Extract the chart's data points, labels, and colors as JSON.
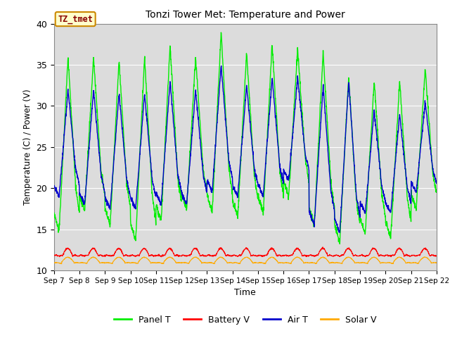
{
  "title": "Tonzi Tower Met: Temperature and Power",
  "xlabel": "Time",
  "ylabel": "Temperature (C) / Power (V)",
  "ylim": [
    10,
    40
  ],
  "bg_color": "#dcdcdc",
  "fig_color": "#ffffff",
  "annotation_text": "TZ_tmet",
  "annotation_box_color": "#ffffcc",
  "annotation_border_color": "#cc8800",
  "annotation_text_color": "#880000",
  "x_tick_labels": [
    "Sep 7",
    "Sep 8",
    "Sep 9",
    "Sep 10",
    "Sep 11",
    "Sep 12",
    "Sep 13",
    "Sep 14",
    "Sep 15",
    "Sep 16",
    "Sep 17",
    "Sep 18",
    "Sep 19",
    "Sep 20",
    "Sep 21",
    "Sep 22"
  ],
  "legend_entries": [
    "Panel T",
    "Battery V",
    "Air T",
    "Solar V"
  ],
  "panel_color": "#00ee00",
  "battery_color": "#ff0000",
  "air_color": "#0000cc",
  "solar_color": "#ffaa00",
  "grid_color": "#ffffff",
  "num_days": 15,
  "samples_per_day": 144,
  "panel_peaks": [
    36,
    36,
    35.5,
    36,
    37.5,
    36,
    39,
    36.5,
    37.5,
    37,
    36.5,
    33.5,
    33,
    33,
    34.5
  ],
  "panel_troughs": [
    14.8,
    17.2,
    15.5,
    13.5,
    16,
    17.5,
    17,
    16.5,
    17,
    19,
    15.5,
    13.5,
    14.5,
    14.0,
    17.5
  ],
  "air_peaks": [
    32,
    32,
    31.5,
    31.5,
    33,
    32,
    35,
    32.5,
    33.5,
    33.5,
    32.5,
    33,
    29.5,
    29,
    30.5
  ],
  "air_troughs": [
    19,
    18.0,
    17.5,
    17.5,
    18,
    18.0,
    19.5,
    19,
    19,
    21,
    15.5,
    14.5,
    17.0,
    17.0,
    19.5
  ],
  "yticks": [
    10,
    15,
    20,
    25,
    30,
    35,
    40
  ]
}
